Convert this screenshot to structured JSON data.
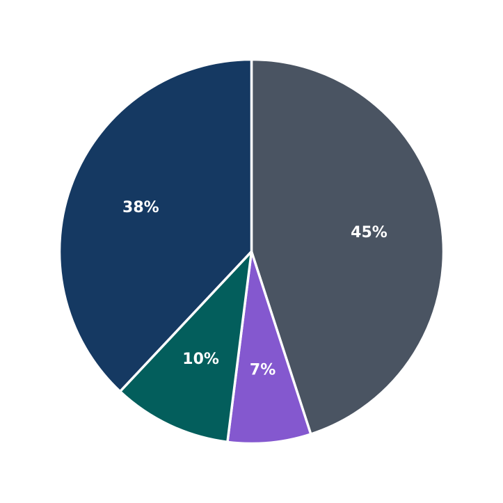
{
  "chart_data": {
    "type": "pie",
    "title": "",
    "start_angle_deg": 90,
    "direction": "clockwise",
    "legend": "none",
    "slices": [
      {
        "value": 45,
        "label": "45%",
        "color": "#4a5462"
      },
      {
        "value": 7,
        "label": "7%",
        "color": "#8458cf"
      },
      {
        "value": 10,
        "label": "10%",
        "color": "#035e5c"
      },
      {
        "value": 38,
        "label": "38%",
        "color": "#153962"
      }
    ]
  }
}
